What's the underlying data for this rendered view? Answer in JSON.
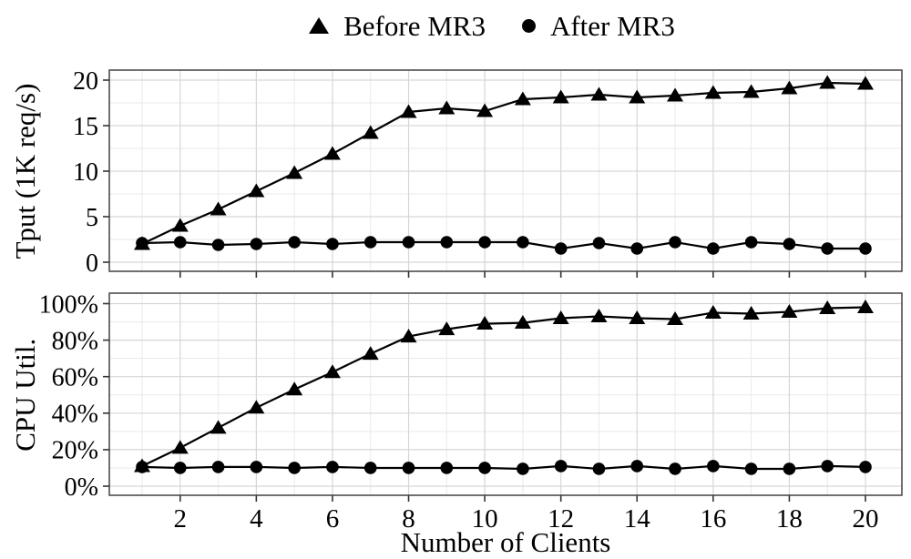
{
  "legend": {
    "items": [
      {
        "label": "Before MR3",
        "marker": "triangle"
      },
      {
        "label": "After MR3",
        "marker": "circle"
      }
    ]
  },
  "colors": {
    "series": "#000000",
    "grid_major": "#d6d6d6",
    "grid_minor": "#eaeaea",
    "panel_border": "#4d4d4d",
    "tick": "#333333",
    "text": "#000000",
    "background": "#ffffff"
  },
  "chart_data": [
    {
      "type": "line",
      "panel": "tput",
      "ylabel": "Tput (1K req/s)",
      "ylim": [
        0,
        20
      ],
      "yticks": [
        0,
        5,
        10,
        15,
        20
      ],
      "ytick_labels": [
        "0",
        "5",
        "10",
        "15",
        "20"
      ],
      "yminor": [
        2.5,
        7.5,
        12.5,
        17.5
      ],
      "x": [
        1,
        2,
        3,
        4,
        5,
        6,
        7,
        8,
        9,
        10,
        11,
        12,
        13,
        14,
        15,
        16,
        17,
        18,
        19,
        20
      ],
      "grid": true,
      "legend_position": "top",
      "series": [
        {
          "name": "Before MR3",
          "marker": "triangle",
          "values": [
            2.0,
            4.0,
            5.8,
            7.8,
            9.8,
            11.9,
            14.2,
            16.5,
            16.9,
            16.6,
            17.9,
            18.1,
            18.4,
            18.1,
            18.3,
            18.6,
            18.7,
            19.1,
            19.7,
            19.6
          ]
        },
        {
          "name": "After MR3",
          "marker": "circle",
          "values": [
            2.1,
            2.2,
            1.9,
            2.0,
            2.2,
            2.0,
            2.2,
            2.2,
            2.2,
            2.2,
            2.2,
            1.5,
            2.1,
            1.5,
            2.2,
            1.5,
            2.2,
            2.0,
            1.5,
            1.5
          ]
        }
      ]
    },
    {
      "type": "line",
      "panel": "cpu",
      "ylabel": "CPU Util.",
      "ylim": [
        0,
        100
      ],
      "yticks": [
        0,
        20,
        40,
        60,
        80,
        100
      ],
      "ytick_labels": [
        "0%",
        "20%",
        "40%",
        "60%",
        "80%",
        "100%"
      ],
      "yminor": [
        10,
        30,
        50,
        70,
        90
      ],
      "x": [
        1,
        2,
        3,
        4,
        5,
        6,
        7,
        8,
        9,
        10,
        11,
        12,
        13,
        14,
        15,
        16,
        17,
        18,
        19,
        20
      ],
      "grid": true,
      "series": [
        {
          "name": "Before MR3",
          "marker": "triangle",
          "values": [
            11,
            21,
            32,
            43,
            53,
            62.5,
            72.5,
            82,
            86,
            89,
            89.5,
            92,
            93,
            92,
            91.5,
            95,
            94.5,
            95.5,
            97.5,
            98
          ]
        },
        {
          "name": "After MR3",
          "marker": "circle",
          "values": [
            10.5,
            10,
            10.5,
            10.5,
            10,
            10.5,
            10,
            10,
            10,
            10,
            9.5,
            11,
            9.5,
            11,
            9.5,
            11,
            9.5,
            9.5,
            11,
            10.5
          ]
        }
      ]
    }
  ],
  "xlabel": "Number of Clients",
  "xticks": [
    2,
    4,
    6,
    8,
    10,
    12,
    14,
    16,
    18,
    20
  ],
  "xtick_labels": [
    "2",
    "4",
    "6",
    "8",
    "10",
    "12",
    "14",
    "16",
    "18",
    "20"
  ]
}
